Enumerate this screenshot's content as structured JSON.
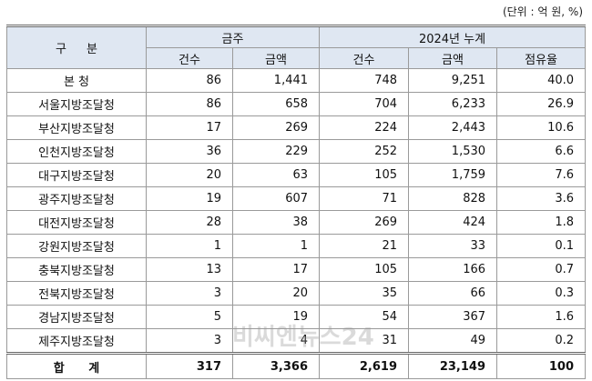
{
  "header": {
    "unit": "(단위 : 억 원, %)",
    "group_label": "구 분",
    "groups": [
      "금주",
      "2024년 누계"
    ],
    "columns": [
      "건수",
      "금액",
      "건수",
      "금액",
      "점유율"
    ]
  },
  "rows": [
    {
      "label": "본 청",
      "values": [
        "86",
        "1,441",
        "748",
        "9,251",
        "40.0"
      ]
    },
    {
      "label": "서울지방조달청",
      "values": [
        "86",
        "658",
        "704",
        "6,233",
        "26.9"
      ]
    },
    {
      "label": "부산지방조달청",
      "values": [
        "17",
        "269",
        "224",
        "2,443",
        "10.6"
      ]
    },
    {
      "label": "인천지방조달청",
      "values": [
        "36",
        "229",
        "252",
        "1,530",
        "6.6"
      ]
    },
    {
      "label": "대구지방조달청",
      "values": [
        "20",
        "63",
        "105",
        "1,759",
        "7.6"
      ]
    },
    {
      "label": "광주지방조달청",
      "values": [
        "19",
        "607",
        "71",
        "828",
        "3.6"
      ]
    },
    {
      "label": "대전지방조달청",
      "values": [
        "28",
        "38",
        "269",
        "424",
        "1.8"
      ]
    },
    {
      "label": "강원지방조달청",
      "values": [
        "1",
        "1",
        "21",
        "33",
        "0.1"
      ]
    },
    {
      "label": "충북지방조달청",
      "values": [
        "13",
        "17",
        "105",
        "166",
        "0.7"
      ]
    },
    {
      "label": "전북지방조달청",
      "values": [
        "3",
        "20",
        "35",
        "66",
        "0.3"
      ]
    },
    {
      "label": "경남지방조달청",
      "values": [
        "5",
        "19",
        "54",
        "367",
        "1.6"
      ]
    },
    {
      "label": "제주지방조달청",
      "values": [
        "3",
        "4",
        "31",
        "49",
        "0.2"
      ]
    }
  ],
  "total": {
    "label": "합 계",
    "values": [
      "317",
      "3,366",
      "2,619",
      "23,149",
      "100"
    ]
  },
  "watermark": "비씨엔뉴스24"
}
